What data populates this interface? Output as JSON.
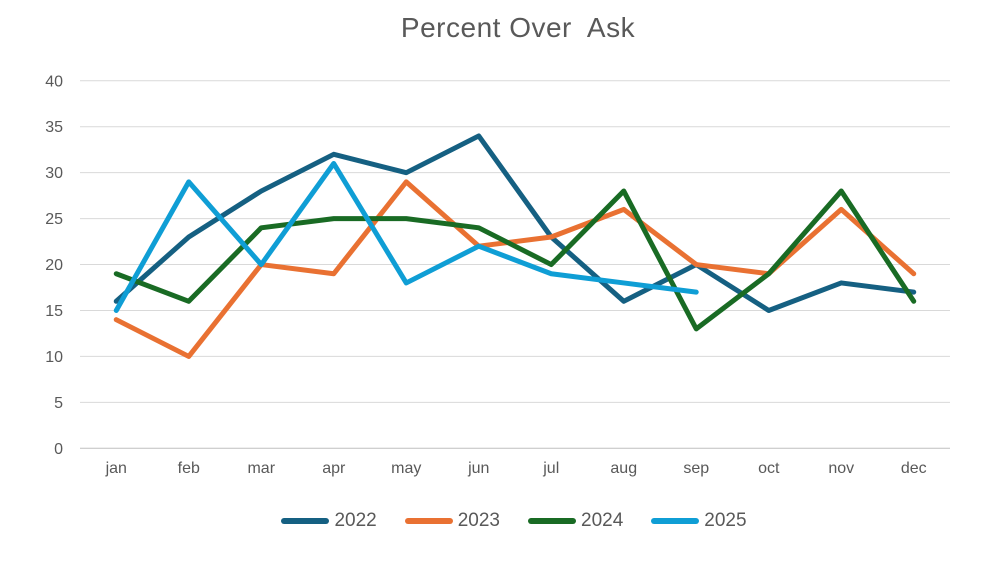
{
  "chart_data": {
    "type": "line",
    "title": "Percent Over  Ask",
    "categories": [
      "jan",
      "feb",
      "mar",
      "apr",
      "may",
      "jun",
      "jul",
      "aug",
      "sep",
      "oct",
      "nov",
      "dec"
    ],
    "series": [
      {
        "name": "2022",
        "color": "#156082",
        "values": [
          16,
          23,
          28,
          32,
          30,
          34,
          23,
          16,
          20,
          15,
          18,
          17
        ]
      },
      {
        "name": "2023",
        "color": "#E97132",
        "values": [
          14,
          10,
          20,
          19,
          29,
          22,
          23,
          26,
          20,
          19,
          26,
          19
        ]
      },
      {
        "name": "2024",
        "color": "#196B24",
        "values": [
          19,
          16,
          24,
          25,
          25,
          24,
          20,
          28,
          13,
          19,
          28,
          16
        ]
      },
      {
        "name": "2025",
        "color": "#0F9ED5",
        "values": [
          15,
          29,
          20,
          31,
          18,
          22,
          19,
          18,
          17
        ]
      }
    ],
    "xlabel": "",
    "ylabel": "",
    "ylim": [
      0,
      40
    ],
    "yticks": [
      0,
      5,
      10,
      15,
      20,
      25,
      30,
      35,
      40
    ],
    "grid": "horizontal",
    "legend_position": "bottom",
    "colors": {
      "gridline": "#D9D9D9",
      "axis_line": "#BFBFBF",
      "tick_text": "#595959",
      "title_text": "#595959"
    }
  }
}
